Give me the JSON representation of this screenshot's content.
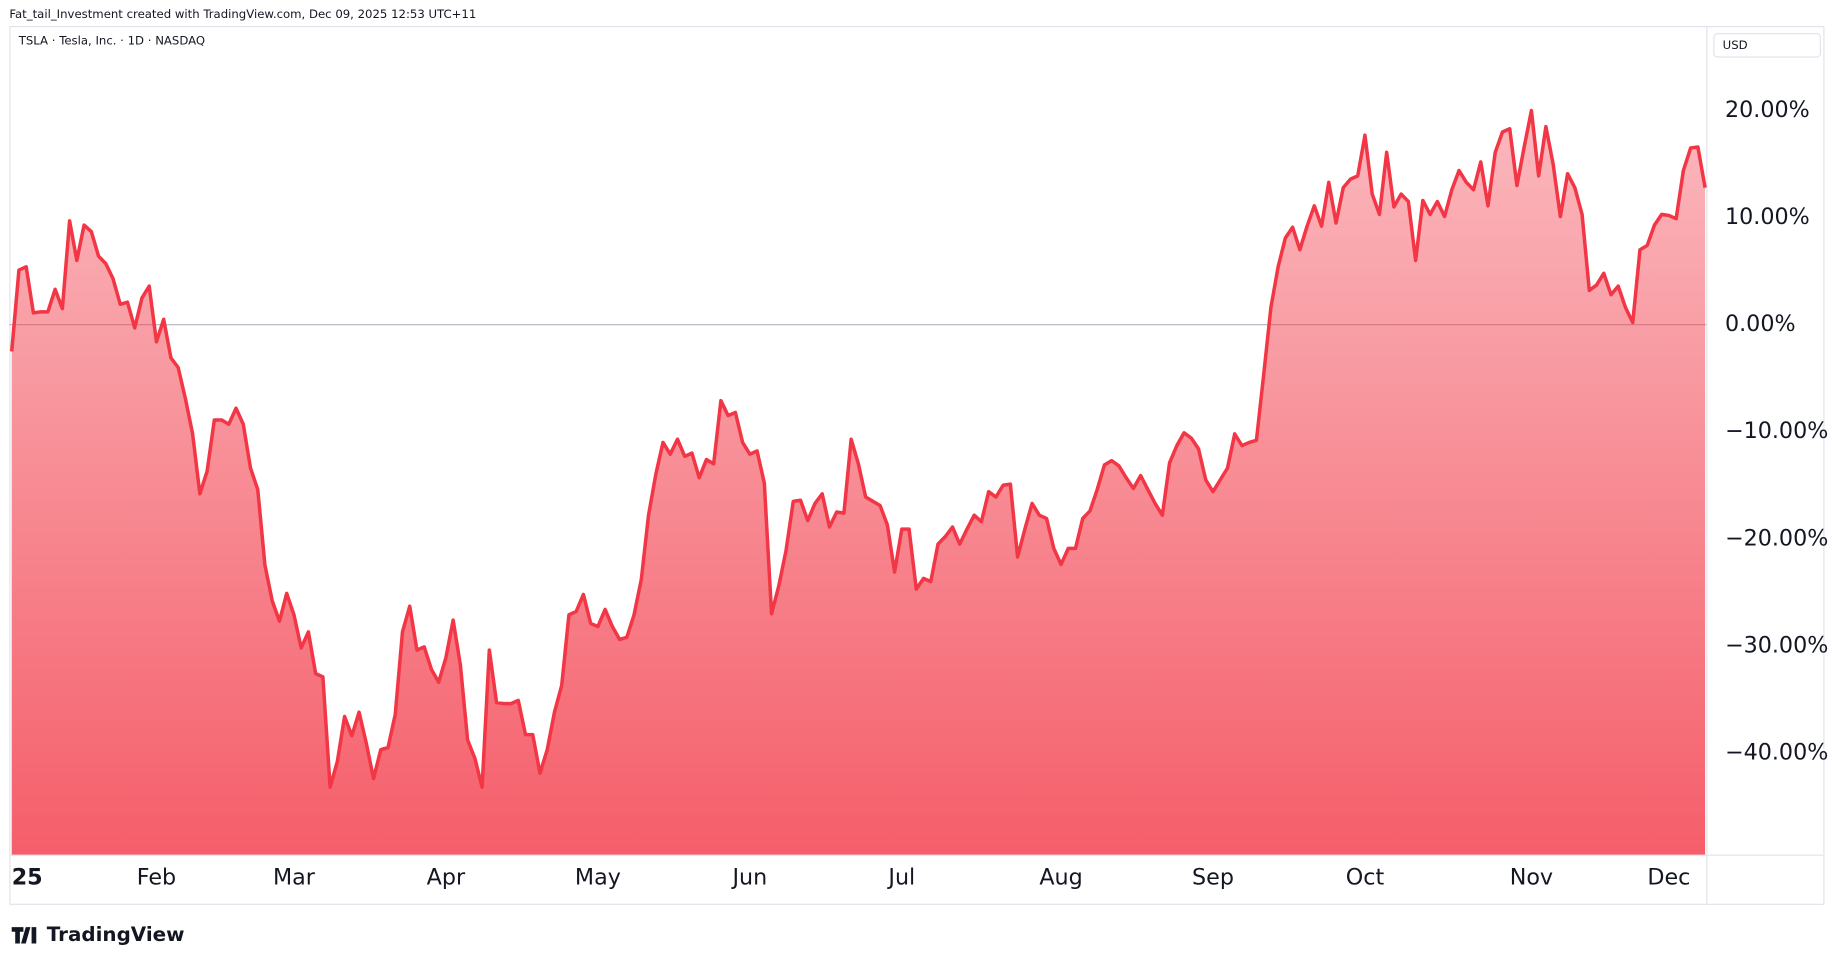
{
  "header": "Fat_tail_Investment created with TradingView.com, Dec 09, 2025 12:53 UTC+11",
  "brand": "TradingView",
  "chart_data": {
    "type": "area",
    "title": "TSLA · Tesla, Inc. · 1D · NASDAQ",
    "currency": "USD",
    "color": "#f23645",
    "zero_line": true,
    "values": [
      -2.5,
      5.1,
      5.4,
      1.1,
      1.2,
      1.2,
      3.3,
      1.5,
      9.7,
      6.0,
      9.3,
      8.7,
      6.4,
      5.7,
      4.3,
      1.9,
      2.1,
      -0.3,
      2.5,
      3.6,
      -1.6,
      0.5,
      -3.1,
      -4.0,
      -6.9,
      -10.2,
      -15.8,
      -13.7,
      -8.9,
      -8.9,
      -9.3,
      -7.8,
      -9.3,
      -13.4,
      -15.4,
      -22.5,
      -25.8,
      -27.7,
      -25.1,
      -27.1,
      -30.2,
      -28.7,
      -32.6,
      -32.9,
      -43.2,
      -40.8,
      -36.6,
      -38.4,
      -36.2,
      -39.1,
      -42.4,
      -39.7,
      -39.5,
      -36.4,
      -28.7,
      -26.3,
      -30.4,
      -30.1,
      -32.2,
      -33.4,
      -31.1,
      -27.6,
      -31.8,
      -38.8,
      -40.5,
      -43.2,
      -30.4,
      -35.3,
      -35.4,
      -35.4,
      -35.1,
      -38.3,
      -38.3,
      -41.9,
      -39.7,
      -36.2,
      -33.7,
      -27.1,
      -26.8,
      -25.2,
      -27.9,
      -28.2,
      -26.6,
      -28.2,
      -29.4,
      -29.2,
      -27.1,
      -23.8,
      -17.8,
      -14.0,
      -11.0,
      -12.1,
      -10.7,
      -12.3,
      -12.0,
      -14.3,
      -12.6,
      -13.0,
      -7.1,
      -8.5,
      -8.2,
      -11.0,
      -12.1,
      -11.8,
      -14.8,
      -27.0,
      -24.4,
      -21.1,
      -16.5,
      -16.4,
      -18.3,
      -16.7,
      -15.8,
      -18.9,
      -17.5,
      -17.6,
      -10.7,
      -13.0,
      -16.1,
      -16.5,
      -16.9,
      -18.7,
      -23.1,
      -19.1,
      -19.1,
      -24.7,
      -23.7,
      -24.0,
      -20.5,
      -19.8,
      -18.9,
      -20.5,
      -19.1,
      -17.8,
      -18.4,
      -15.6,
      -16.1,
      -15.0,
      -14.9,
      -21.7,
      -19.1,
      -16.7,
      -17.8,
      -18.1,
      -20.9,
      -22.4,
      -20.9,
      -20.9,
      -18.1,
      -17.4,
      -15.4,
      -13.1,
      -12.7,
      -13.2,
      -14.3,
      -15.3,
      -14.1,
      -15.4,
      -16.7,
      -17.8,
      -12.9,
      -11.3,
      -10.1,
      -10.6,
      -11.6,
      -14.5,
      -15.6,
      -14.5,
      -13.4,
      -10.2,
      -11.3,
      -11.0,
      -10.8,
      -4.7,
      1.6,
      5.4,
      8.1,
      9.1,
      7.0,
      9.2,
      11.1,
      9.2,
      13.3,
      9.5,
      12.8,
      13.6,
      13.9,
      17.7,
      12.2,
      10.3,
      16.1,
      11.0,
      12.2,
      11.5,
      6.0,
      11.6,
      10.3,
      11.5,
      10.1,
      12.6,
      14.4,
      13.3,
      12.6,
      15.2,
      11.1,
      16.1,
      18.0,
      18.3,
      13.0,
      16.6,
      20.0,
      13.9,
      18.5,
      15.0,
      10.1,
      14.1,
      12.8,
      10.3,
      3.2,
      3.7,
      4.8,
      2.8,
      3.6,
      1.6,
      0.2,
      7.0,
      7.4,
      9.3,
      10.3,
      10.2,
      9.9,
      14.4,
      16.5,
      16.6,
      12.8
    ],
    "xlim": [
      0,
      234
    ],
    "xticks": [
      {
        "value": 0,
        "label": "25"
      },
      {
        "value": 20,
        "label": "Feb"
      },
      {
        "value": 39,
        "label": "Mar"
      },
      {
        "value": 60,
        "label": "Apr"
      },
      {
        "value": 81,
        "label": "May"
      },
      {
        "value": 102,
        "label": "Jun"
      },
      {
        "value": 123,
        "label": "Jul"
      },
      {
        "value": 145,
        "label": "Aug"
      },
      {
        "value": 166,
        "label": "Sep"
      },
      {
        "value": 187,
        "label": "Oct"
      },
      {
        "value": 210,
        "label": "Nov"
      },
      {
        "value": 229,
        "label": "Dec"
      }
    ],
    "ylim": [
      -49.5,
      27.9
    ],
    "yticks": [
      {
        "value": 20,
        "label": "20.00%"
      },
      {
        "value": 10,
        "label": "10.00%"
      },
      {
        "value": 0,
        "label": "0.00%"
      },
      {
        "value": -10,
        "label": "−10.00%"
      },
      {
        "value": -20,
        "label": "−20.00%"
      },
      {
        "value": -30,
        "label": "−30.00%"
      },
      {
        "value": -40,
        "label": "−40.00%"
      }
    ]
  }
}
